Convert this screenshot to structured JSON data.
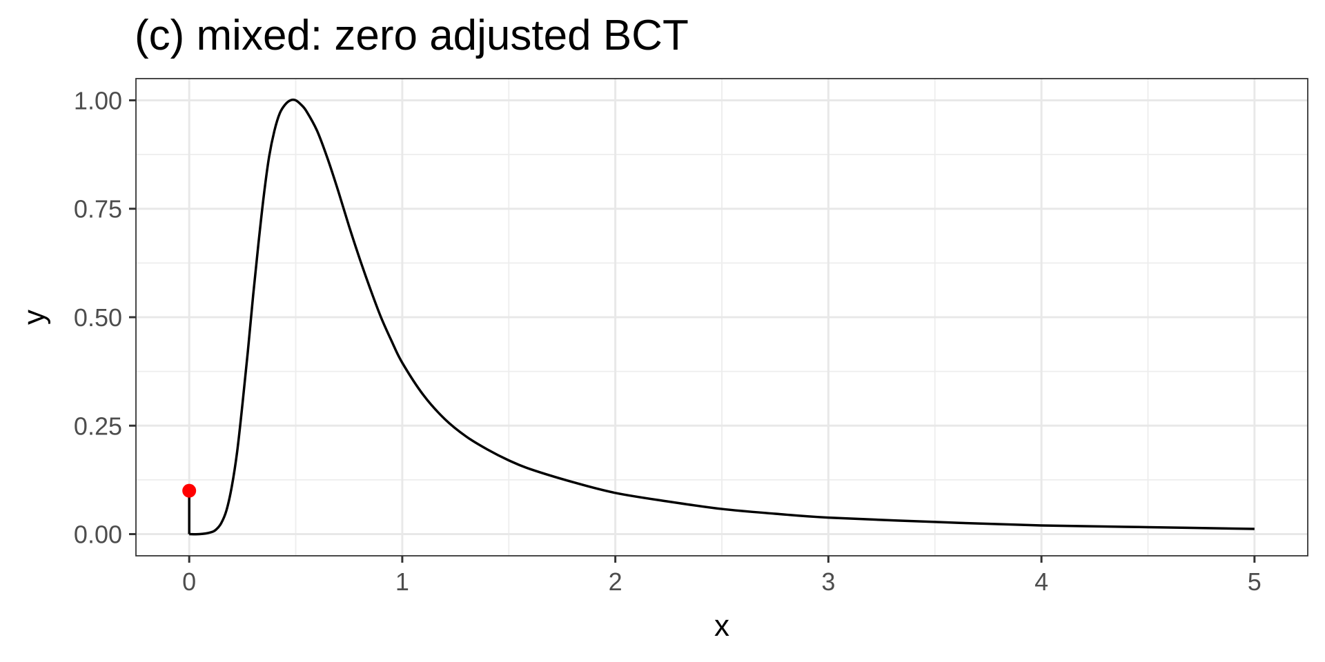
{
  "chart_data": {
    "type": "line",
    "title": "(c) mixed: zero adjusted BCT",
    "xlabel": "x",
    "ylabel": "y",
    "xlim": [
      -0.25,
      5.25
    ],
    "ylim": [
      -0.05,
      1.05
    ],
    "x_ticks": [
      0,
      1,
      2,
      3,
      4,
      5
    ],
    "x_tick_labels": [
      "0",
      "1",
      "2",
      "3",
      "4",
      "5"
    ],
    "y_ticks": [
      0,
      0.25,
      0.5,
      0.75,
      1
    ],
    "y_tick_labels": [
      "0.00",
      "0.25",
      "0.50",
      "0.75",
      "1.00"
    ],
    "grid": true,
    "background": "#ffffff",
    "series": [
      {
        "style": "line",
        "color": "#000000",
        "x": [
          0,
          0.05,
          0.1,
          0.125,
          0.15,
          0.175,
          0.2,
          0.225,
          0.25,
          0.275,
          0.3,
          0.325,
          0.35,
          0.375,
          0.4,
          0.425,
          0.45,
          0.475,
          0.5,
          0.525,
          0.55,
          0.6,
          0.65,
          0.7,
          0.75,
          0.8,
          0.85,
          0.9,
          0.95,
          1.0,
          1.1,
          1.2,
          1.3,
          1.4,
          1.5,
          1.6,
          1.8,
          2.0,
          2.25,
          2.5,
          2.75,
          3.0,
          3.5,
          4.0,
          4.5,
          5.0
        ],
        "y": [
          0.0,
          0.0,
          0.004,
          0.01,
          0.025,
          0.055,
          0.11,
          0.19,
          0.3,
          0.42,
          0.55,
          0.67,
          0.78,
          0.87,
          0.93,
          0.97,
          0.99,
          1.0,
          1.0,
          0.99,
          0.975,
          0.93,
          0.865,
          0.79,
          0.71,
          0.635,
          0.565,
          0.5,
          0.445,
          0.395,
          0.32,
          0.265,
          0.225,
          0.195,
          0.17,
          0.15,
          0.12,
          0.095,
          0.075,
          0.058,
          0.047,
          0.038,
          0.028,
          0.02,
          0.016,
          0.012
        ]
      },
      {
        "style": "spike",
        "color": "#000000",
        "x": [
          0,
          0
        ],
        "y": [
          0,
          0.1
        ]
      },
      {
        "style": "point",
        "color": "#ff0000",
        "x": [
          0
        ],
        "y": [
          0.1
        ]
      }
    ]
  }
}
